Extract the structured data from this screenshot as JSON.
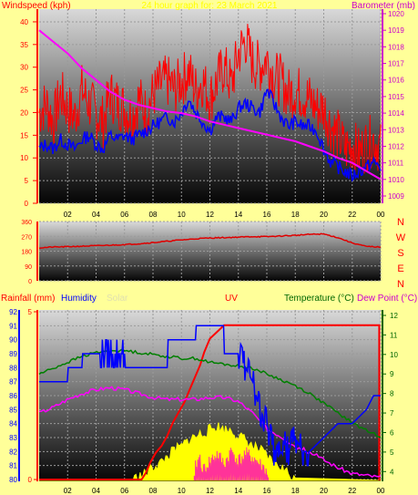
{
  "colors": {
    "background": "#FFFF99",
    "wind_speed": "#FF0000",
    "wind_avg": "#0000FF",
    "barometer": "#FF00FF",
    "direction": "#E00000",
    "rainfall": "#FF0000",
    "humidity": "#0000FF",
    "solar": "#FFFF00",
    "uv": "#FF3399",
    "temperature": "#008000",
    "dew_point": "#FF00FF",
    "label_red": "#FF0000",
    "label_blue": "#0000FF",
    "label_green": "#006600",
    "label_magenta": "#CC00CC",
    "label_solar": "#E0E0B0",
    "label_uv": "#FF0000"
  },
  "chart_data": [
    {
      "type": "line",
      "panel": "wind-barometer",
      "title": "24 hour graph for: 23 March 2021",
      "ylabel_left": "Windspeed (kph)",
      "ylabel_right": "Barometer (mb)",
      "x_ticks": [
        "02",
        "04",
        "06",
        "08",
        "10",
        "12",
        "14",
        "16",
        "18",
        "20",
        "22",
        "00"
      ],
      "x_range": [
        0,
        24
      ],
      "ylim_left": [
        0,
        42
      ],
      "ylim_right": [
        1009,
        1020
      ],
      "y_ticks_left": [
        "0",
        "5",
        "10",
        "15",
        "20",
        "25",
        "30",
        "35",
        "40"
      ],
      "y_ticks_right": [
        "1009",
        "1010",
        "1011",
        "1012",
        "1013",
        "1014",
        "1015",
        "1016",
        "1017",
        "1018",
        "1019",
        "1020"
      ],
      "grid": true,
      "series": [
        {
          "key": "gust",
          "x": [
            0,
            0.5,
            1,
            1.5,
            2,
            2.5,
            3,
            3.5,
            4,
            4.5,
            5,
            5.5,
            6,
            6.5,
            7,
            7.5,
            8,
            8.5,
            9,
            9.5,
            10,
            10.5,
            11,
            11.5,
            12,
            12.5,
            13,
            13.5,
            14,
            14.5,
            15,
            15.5,
            16,
            16.5,
            17,
            17.5,
            18,
            18.5,
            19,
            19.5,
            20,
            20.5,
            21,
            21.5,
            22,
            22.5,
            23,
            23.5,
            24
          ],
          "y": [
            20,
            22,
            18,
            24,
            21,
            19,
            25,
            22,
            20,
            18,
            24,
            22,
            21,
            19,
            23,
            20,
            24,
            26,
            27,
            25,
            27,
            29,
            25,
            27,
            23,
            27,
            30,
            26,
            33,
            36,
            31,
            30,
            32,
            28,
            27,
            24,
            25,
            24,
            23,
            21,
            21,
            17,
            15,
            12,
            13,
            11,
            13,
            14,
            12
          ]
        },
        {
          "key": "wind_avg",
          "x": [
            0,
            0.5,
            1,
            1.5,
            2,
            2.5,
            3,
            3.5,
            4,
            4.5,
            5,
            5.5,
            6,
            6.5,
            7,
            7.5,
            8,
            8.5,
            9,
            9.5,
            10,
            10.5,
            11,
            11.5,
            12,
            12.5,
            13,
            13.5,
            14,
            14.5,
            15,
            15.5,
            16,
            16.5,
            17,
            17.5,
            18,
            18.5,
            19,
            19.5,
            20,
            20.5,
            21,
            21.5,
            22,
            22.5,
            23,
            23.5,
            24
          ],
          "y": [
            12,
            13,
            12,
            14,
            13,
            12,
            14,
            15,
            13,
            12,
            15,
            14,
            15,
            14,
            15,
            16,
            17,
            18,
            19,
            18,
            20,
            23,
            20,
            18,
            16,
            19,
            19,
            18,
            21,
            22,
            21,
            20,
            25,
            22,
            19,
            17,
            18,
            17,
            17,
            16,
            12,
            9,
            8,
            7,
            6,
            7,
            8,
            9,
            8
          ]
        },
        {
          "key": "barometer",
          "axis": "right",
          "x": [
            0,
            1,
            2,
            3,
            4,
            5,
            6,
            7,
            8,
            9,
            10,
            11,
            12,
            13,
            14,
            15,
            16,
            17,
            18,
            19,
            20,
            21,
            22,
            23,
            24
          ],
          "y": [
            1019.0,
            1018.3,
            1017.6,
            1016.7,
            1016.0,
            1015.3,
            1014.8,
            1014.5,
            1014.3,
            1014.1,
            1014.0,
            1013.8,
            1013.5,
            1013.3,
            1013.1,
            1012.9,
            1012.7,
            1012.5,
            1012.3,
            1012.0,
            1011.7,
            1011.3,
            1011.0,
            1010.5,
            1010.0
          ]
        }
      ]
    },
    {
      "type": "line",
      "panel": "wind-direction",
      "x_range": [
        0,
        24
      ],
      "ylim": [
        0,
        360
      ],
      "y_ticks": [
        "0",
        "90",
        "180",
        "270",
        "360"
      ],
      "direction_labels": [
        "N",
        "W",
        "S",
        "E",
        "N"
      ],
      "grid": true,
      "series": [
        {
          "key": "direction",
          "x": [
            0,
            1,
            2,
            3,
            4,
            5,
            6,
            7,
            8,
            9,
            10,
            11,
            12,
            13,
            14,
            15,
            16,
            17,
            18,
            19,
            20,
            21,
            22,
            23,
            24
          ],
          "y": [
            200,
            205,
            207,
            210,
            213,
            216,
            220,
            225,
            232,
            240,
            248,
            255,
            260,
            262,
            265,
            268,
            268,
            272,
            276,
            282,
            284,
            262,
            230,
            208,
            205
          ]
        }
      ]
    },
    {
      "type": "line",
      "panel": "rain-humidity-solar-uv-temperature",
      "labels": {
        "rainfall": "Rainfall (mm)",
        "humidity": "Humidity",
        "solar": "Solar",
        "uv": "UV",
        "temperature": "Temperature (°C)",
        "dew_point": "Dew Point (°C)"
      },
      "x_ticks": [
        "02",
        "04",
        "06",
        "08",
        "10",
        "12",
        "14",
        "16",
        "18",
        "20",
        "22",
        "00"
      ],
      "x_range": [
        0,
        24
      ],
      "ylim_rain": [
        0,
        5
      ],
      "y_ticks_rain": [
        "0",
        "5"
      ],
      "ylim_humidity": [
        80,
        92
      ],
      "y_ticks_humidity": [
        "80",
        "81",
        "82",
        "83",
        "84",
        "85",
        "86",
        "87",
        "88",
        "89",
        "90",
        "91",
        "92"
      ],
      "ylim_temperature": [
        3.5,
        12
      ],
      "y_ticks_temperature": [
        "4",
        "5",
        "6",
        "7",
        "8",
        "9",
        "10",
        "11",
        "12"
      ],
      "grid": true,
      "series": [
        {
          "key": "rainfall",
          "x": [
            0,
            7.2,
            7.5,
            7.8,
            8.2,
            8.6,
            9.0,
            9.4,
            9.8,
            10.2,
            10.6,
            11.0,
            11.3,
            11.6,
            12.0,
            12.5,
            13.0,
            14,
            16,
            18,
            20,
            22,
            23.9,
            23.9,
            24
          ],
          "y": [
            0,
            0,
            0.2,
            0.5,
            0.8,
            1.0,
            1.3,
            1.7,
            2.0,
            2.3,
            2.7,
            3.1,
            3.4,
            3.8,
            4.2,
            4.4,
            4.6,
            4.6,
            4.6,
            4.6,
            4.6,
            4.6,
            4.6,
            0,
            0
          ]
        },
        {
          "key": "humidity",
          "x": [
            0,
            2,
            2.01,
            3,
            3.01,
            6,
            6.01,
            9,
            9.01,
            11,
            11.01,
            13,
            13.01,
            14,
            14.5,
            15,
            15.5,
            16,
            16.5,
            17,
            17.5,
            18,
            18.5,
            19,
            20,
            21,
            22,
            23,
            23.5,
            24
          ],
          "y": [
            87,
            87,
            88,
            88,
            89,
            89,
            88,
            88,
            90,
            90,
            91,
            91,
            89,
            89,
            88,
            87,
            85,
            84,
            82,
            83,
            82,
            83,
            82,
            82,
            83,
            84,
            84,
            85,
            86,
            86
          ]
        },
        {
          "key": "solar",
          "x": [
            0,
            6.5,
            7,
            7.5,
            8,
            8.5,
            9,
            9.5,
            10,
            10.5,
            11,
            11.5,
            12,
            12.5,
            13,
            13.5,
            14,
            14.5,
            15,
            15.5,
            16,
            16.5,
            17,
            17.5,
            18,
            24
          ],
          "y": [
            0,
            0,
            0.1,
            0.2,
            0.4,
            0.5,
            0.7,
            0.9,
            1.0,
            1.2,
            1.3,
            1.4,
            1.5,
            1.6,
            1.5,
            1.5,
            1.3,
            1.2,
            1.0,
            0.9,
            0.7,
            0.5,
            0.4,
            0.2,
            0,
            0
          ]
        },
        {
          "key": "uv",
          "x": [
            0,
            10.9,
            11.0,
            11.3,
            11.5,
            12.0,
            12.5,
            13.0,
            13.5,
            14.0,
            14.5,
            15.0,
            15.5,
            16.0,
            16.1,
            24
          ],
          "y": [
            0,
            0,
            0.5,
            0.7,
            0.3,
            0.6,
            0.8,
            0.5,
            0.9,
            0.6,
            0.8,
            0.7,
            0.5,
            0.3,
            0,
            0
          ]
        },
        {
          "key": "temperature",
          "x": [
            0,
            1,
            2,
            3,
            4,
            5,
            6,
            7,
            8,
            9,
            10,
            11,
            12,
            13,
            14,
            15,
            16,
            17,
            18,
            19,
            20,
            21,
            22,
            23,
            24
          ],
          "y": [
            9.0,
            9.3,
            9.6,
            9.9,
            10.1,
            10.2,
            10.2,
            10.1,
            10.0,
            9.9,
            9.8,
            9.8,
            9.6,
            9.5,
            9.4,
            9.3,
            9.0,
            8.7,
            8.4,
            8.0,
            7.5,
            7.0,
            6.5,
            6.1,
            5.8
          ]
        },
        {
          "key": "dew_point",
          "x": [
            0,
            1,
            2,
            3,
            4,
            5,
            6,
            7,
            8,
            9,
            10,
            11,
            12,
            13,
            14,
            15,
            16,
            17,
            18,
            19,
            20,
            21,
            22,
            23,
            24
          ],
          "y": [
            7.0,
            7.3,
            7.7,
            8.0,
            8.2,
            8.3,
            8.2,
            8.0,
            7.8,
            7.7,
            7.7,
            7.7,
            7.8,
            7.8,
            7.6,
            7.0,
            6.2,
            5.8,
            5.3,
            5.0,
            4.6,
            4.2,
            3.9,
            3.8,
            3.7
          ]
        }
      ]
    }
  ]
}
